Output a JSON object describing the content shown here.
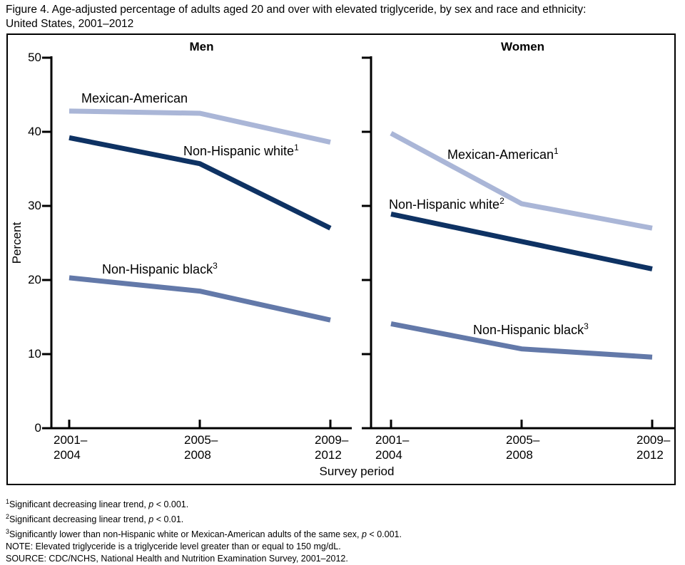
{
  "figure": {
    "title_line1": "Figure 4. Age-adjusted percentage of adults aged 20 and over with elevated triglyceride, by sex and race and ethnicity:",
    "title_line2": "United States, 2001–2012"
  },
  "chart_data": {
    "type": "line",
    "categories": [
      "2001–2004",
      "2005–2008",
      "2009–2012"
    ],
    "x_tick_lines": [
      [
        "2001–",
        "2004"
      ],
      [
        "2005–",
        "2008"
      ],
      [
        "2009–",
        "2012"
      ]
    ],
    "xlabel": "Survey period",
    "ylabel": "Percent",
    "ylim": [
      0,
      50
    ],
    "yticks": [
      0,
      10,
      20,
      30,
      40,
      50
    ],
    "grid": false,
    "legend_position": "inline-labels-next-to-lines",
    "axis_color": "#000000",
    "panels": [
      {
        "title": "Men",
        "series": [
          {
            "name": "Mexican-American",
            "sup": "",
            "values": [
              42.8,
              42.5,
              38.6
            ],
            "color": "#aab6d7"
          },
          {
            "name": "Non-Hispanic white",
            "sup": "1",
            "values": [
              39.2,
              35.7,
              27.0
            ],
            "color": "#0e3263"
          },
          {
            "name": "Non-Hispanic black",
            "sup": "3",
            "values": [
              20.3,
              18.5,
              14.6
            ],
            "color": "#6379a9"
          }
        ]
      },
      {
        "title": "Women",
        "series": [
          {
            "name": "Mexican-American",
            "sup": "1",
            "values": [
              39.8,
              30.3,
              27.0
            ],
            "color": "#aab6d7"
          },
          {
            "name": "Non-Hispanic white",
            "sup": "2",
            "values": [
              28.9,
              25.2,
              21.5
            ],
            "color": "#0e3263"
          },
          {
            "name": "Non-Hispanic black",
            "sup": "3",
            "values": [
              14.1,
              10.7,
              9.6
            ],
            "color": "#6379a9"
          }
        ]
      }
    ]
  },
  "footnotes": [
    {
      "sup": "1",
      "text": "Significant decreasing linear trend, ",
      "italic": "p",
      "tail": " < 0.001."
    },
    {
      "sup": "2",
      "text": "Significant decreasing linear trend, ",
      "italic": "p",
      "tail": " < 0.01."
    },
    {
      "sup": "3",
      "text": "Significantly lower than non-Hispanic white or Mexican-American adults of the same sex, ",
      "italic": "p",
      "tail": " < 0.001."
    },
    {
      "sup": "",
      "text": "NOTE: Elevated triglyceride is a triglyceride level greater than or equal to 150 mg/dL.",
      "italic": "",
      "tail": ""
    },
    {
      "sup": "",
      "text": "SOURCE: CDC/NCHS, National Health and Nutrition Examination Survey, 2001–2012.",
      "italic": "",
      "tail": ""
    }
  ]
}
